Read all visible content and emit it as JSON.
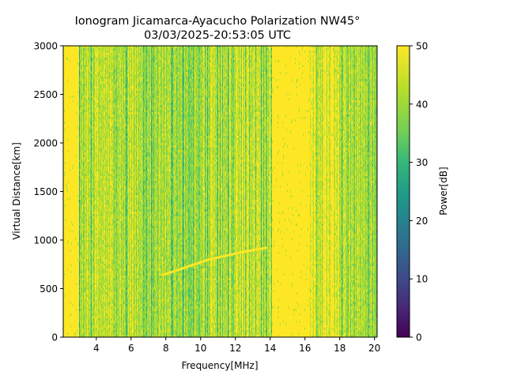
{
  "chart_data": {
    "type": "heatmap",
    "title": "Ionogram Jicamarca-Ayacucho Polarization NW45°",
    "subtitle": "03/03/2025-20:53:05 UTC",
    "xlabel": "Frequency[MHz]",
    "ylabel": "Virtual Distance[km]",
    "xlim": [
      2.1,
      20.15
    ],
    "ylim": [
      0,
      3000
    ],
    "xticks": [
      4,
      6,
      8,
      10,
      12,
      14,
      16,
      18,
      20
    ],
    "xtick_labels": [
      "4",
      "6",
      "8",
      "10",
      "12",
      "14",
      "16",
      "18",
      "20"
    ],
    "yticks": [
      0,
      500,
      1000,
      1500,
      2000,
      2500,
      3000
    ],
    "ytick_labels": [
      "0",
      "500",
      "1000",
      "1500",
      "2000",
      "2500",
      "3000"
    ],
    "colorbar": {
      "label": "Power[dB]",
      "colormap": "viridis",
      "range": [
        0,
        50
      ],
      "ticks": [
        0,
        10,
        20,
        30,
        40,
        50
      ],
      "tick_labels": [
        "0",
        "10",
        "20",
        "30",
        "40",
        "50"
      ]
    },
    "grid": false,
    "mean_power_profile_db": [
      {
        "f_from": 2.1,
        "f_to": 3.0,
        "power": 50
      },
      {
        "f_from": 3.0,
        "f_to": 5.0,
        "power": 43
      },
      {
        "f_from": 5.0,
        "f_to": 8.0,
        "power": 42
      },
      {
        "f_from": 8.0,
        "f_to": 9.5,
        "power": 39
      },
      {
        "f_from": 9.5,
        "f_to": 12.0,
        "power": 42
      },
      {
        "f_from": 12.0,
        "f_to": 13.5,
        "power": 44
      },
      {
        "f_from": 13.5,
        "f_to": 14.1,
        "power": 40
      },
      {
        "f_from": 14.1,
        "f_to": 16.3,
        "power": 50
      },
      {
        "f_from": 16.3,
        "f_to": 18.0,
        "power": 46
      },
      {
        "f_from": 18.0,
        "f_to": 20.15,
        "power": 41
      }
    ],
    "echo_trace": {
      "name": "F-layer echo",
      "power_db": 50,
      "points": [
        {
          "f": 7.8,
          "d": 640
        },
        {
          "f": 8.5,
          "d": 680
        },
        {
          "f": 9.5,
          "d": 740
        },
        {
          "f": 10.5,
          "d": 800
        },
        {
          "f": 11.5,
          "d": 840
        },
        {
          "f": 12.5,
          "d": 880
        },
        {
          "f": 13.8,
          "d": 920
        }
      ]
    }
  }
}
